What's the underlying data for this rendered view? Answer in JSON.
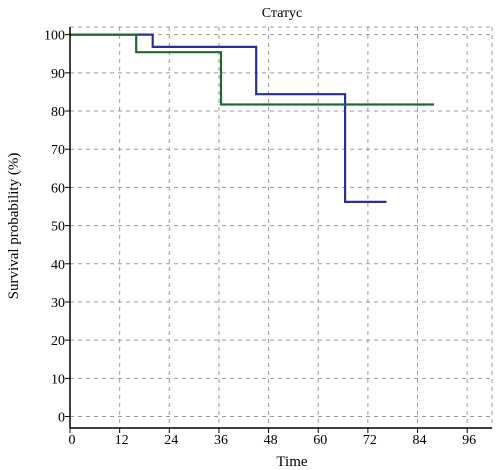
{
  "chart_data": {
    "type": "line",
    "title": "Статус",
    "xlabel": "Time",
    "ylabel": "Survival probability (%)",
    "xlim": [
      0,
      102
    ],
    "ylim": [
      -3,
      102
    ],
    "xticks": [
      0,
      12,
      24,
      36,
      48,
      60,
      72,
      84,
      96
    ],
    "yticks": [
      0,
      10,
      20,
      30,
      40,
      50,
      60,
      70,
      80,
      90,
      100
    ],
    "grid": true,
    "step": true,
    "series": [
      {
        "color": "#2b2f8f",
        "x": [
          0,
          20,
          20,
          45,
          45,
          66.5,
          66.5,
          76.5
        ],
        "y": [
          100,
          100,
          96.8,
          96.8,
          84.4,
          84.4,
          56.2,
          56.2
        ]
      },
      {
        "color": "#1f6b2e",
        "x": [
          0,
          16,
          16,
          36.5,
          36.5,
          88
        ],
        "y": [
          100,
          100,
          95.4,
          95.4,
          81.7,
          81.7
        ]
      }
    ]
  }
}
